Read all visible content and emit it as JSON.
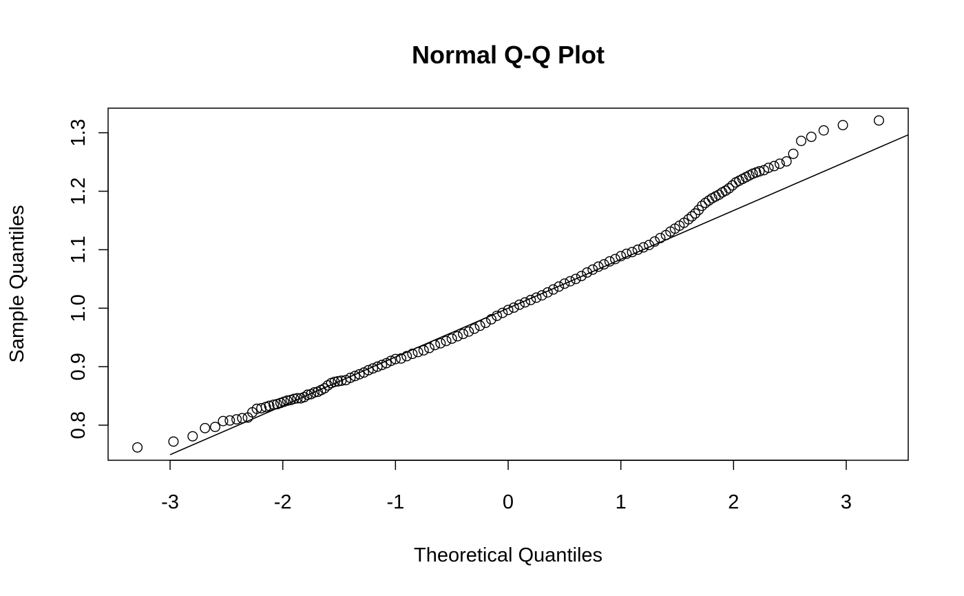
{
  "chart_data": {
    "type": "scatter",
    "title": "Normal Q-Q Plot",
    "xlabel": "Theoretical Quantiles",
    "ylabel": "Sample Quantiles",
    "xlim": [
      -3.55,
      3.55
    ],
    "ylim": [
      0.74,
      1.342
    ],
    "x_ticks": [
      "-3",
      "-2",
      "-1",
      "0",
      "1",
      "2",
      "3"
    ],
    "y_ticks": [
      "0.8",
      "0.9",
      "1.0",
      "1.1",
      "1.2",
      "1.3"
    ],
    "grid": false,
    "reference_line": {
      "label": "qqline",
      "intercept": 1.0,
      "slope": 0.0835,
      "x_start": -3.0
    },
    "series": [
      {
        "marker": "open-circle",
        "points": [
          [
            -3.29,
            0.762
          ],
          [
            -2.97,
            0.772
          ],
          [
            -2.8,
            0.781
          ],
          [
            -2.69,
            0.795
          ],
          [
            -2.6,
            0.797
          ],
          [
            -2.53,
            0.807
          ],
          [
            -2.47,
            0.808
          ],
          [
            -2.41,
            0.81
          ],
          [
            -2.36,
            0.812
          ],
          [
            -2.31,
            0.813
          ],
          [
            -2.27,
            0.822
          ],
          [
            -2.23,
            0.828
          ],
          [
            -2.19,
            0.829
          ],
          [
            -2.15,
            0.831
          ],
          [
            -2.12,
            0.833
          ],
          [
            -2.08,
            0.835
          ],
          [
            -2.05,
            0.836
          ],
          [
            -2.02,
            0.838
          ],
          [
            -1.99,
            0.84
          ],
          [
            -1.96,
            0.842
          ],
          [
            -1.93,
            0.843
          ],
          [
            -1.9,
            0.845
          ],
          [
            -1.87,
            0.846
          ],
          [
            -1.84,
            0.846
          ],
          [
            -1.81,
            0.848
          ],
          [
            -1.78,
            0.852
          ],
          [
            -1.75,
            0.853
          ],
          [
            -1.72,
            0.856
          ],
          [
            -1.69,
            0.857
          ],
          [
            -1.66,
            0.86
          ],
          [
            -1.63,
            0.863
          ],
          [
            -1.6,
            0.868
          ],
          [
            -1.57,
            0.872
          ],
          [
            -1.54,
            0.874
          ],
          [
            -1.51,
            0.875
          ],
          [
            -1.48,
            0.876
          ],
          [
            -1.44,
            0.877
          ],
          [
            -1.4,
            0.881
          ],
          [
            -1.36,
            0.884
          ],
          [
            -1.32,
            0.887
          ],
          [
            -1.28,
            0.89
          ],
          [
            -1.24,
            0.894
          ],
          [
            -1.2,
            0.897
          ],
          [
            -1.16,
            0.9
          ],
          [
            -1.12,
            0.903
          ],
          [
            -1.08,
            0.906
          ],
          [
            -1.04,
            0.91
          ],
          [
            -1.0,
            0.913
          ],
          [
            -0.95,
            0.914
          ],
          [
            -0.9,
            0.918
          ],
          [
            -0.85,
            0.922
          ],
          [
            -0.8,
            0.925
          ],
          [
            -0.75,
            0.928
          ],
          [
            -0.7,
            0.932
          ],
          [
            -0.65,
            0.937
          ],
          [
            -0.6,
            0.94
          ],
          [
            -0.55,
            0.944
          ],
          [
            -0.5,
            0.948
          ],
          [
            -0.45,
            0.952
          ],
          [
            -0.4,
            0.956
          ],
          [
            -0.35,
            0.96
          ],
          [
            -0.3,
            0.965
          ],
          [
            -0.25,
            0.97
          ],
          [
            -0.2,
            0.975
          ],
          [
            -0.15,
            0.981
          ],
          [
            -0.1,
            0.987
          ],
          [
            -0.05,
            0.992
          ],
          [
            0.0,
            0.997
          ],
          [
            0.05,
            1.001
          ],
          [
            0.1,
            1.006
          ],
          [
            0.15,
            1.01
          ],
          [
            0.2,
            1.014
          ],
          [
            0.25,
            1.018
          ],
          [
            0.3,
            1.022
          ],
          [
            0.35,
            1.027
          ],
          [
            0.4,
            1.032
          ],
          [
            0.45,
            1.037
          ],
          [
            0.5,
            1.042
          ],
          [
            0.55,
            1.046
          ],
          [
            0.6,
            1.05
          ],
          [
            0.65,
            1.055
          ],
          [
            0.7,
            1.061
          ],
          [
            0.75,
            1.066
          ],
          [
            0.8,
            1.071
          ],
          [
            0.85,
            1.075
          ],
          [
            0.9,
            1.08
          ],
          [
            0.95,
            1.084
          ],
          [
            1.0,
            1.089
          ],
          [
            1.05,
            1.093
          ],
          [
            1.1,
            1.096
          ],
          [
            1.15,
            1.1
          ],
          [
            1.2,
            1.104
          ],
          [
            1.25,
            1.108
          ],
          [
            1.3,
            1.114
          ],
          [
            1.35,
            1.12
          ],
          [
            1.4,
            1.125
          ],
          [
            1.44,
            1.131
          ],
          [
            1.48,
            1.136
          ],
          [
            1.52,
            1.141
          ],
          [
            1.56,
            1.146
          ],
          [
            1.6,
            1.152
          ],
          [
            1.63,
            1.157
          ],
          [
            1.66,
            1.162
          ],
          [
            1.69,
            1.168
          ],
          [
            1.72,
            1.175
          ],
          [
            1.75,
            1.18
          ],
          [
            1.78,
            1.184
          ],
          [
            1.81,
            1.188
          ],
          [
            1.84,
            1.191
          ],
          [
            1.87,
            1.194
          ],
          [
            1.9,
            1.198
          ],
          [
            1.93,
            1.201
          ],
          [
            1.96,
            1.205
          ],
          [
            1.99,
            1.21
          ],
          [
            2.02,
            1.215
          ],
          [
            2.05,
            1.218
          ],
          [
            2.08,
            1.221
          ],
          [
            2.11,
            1.224
          ],
          [
            2.14,
            1.227
          ],
          [
            2.17,
            1.23
          ],
          [
            2.2,
            1.232
          ],
          [
            2.23,
            1.234
          ],
          [
            2.27,
            1.236
          ],
          [
            2.31,
            1.24
          ],
          [
            2.36,
            1.243
          ],
          [
            2.41,
            1.247
          ],
          [
            2.47,
            1.251
          ],
          [
            2.53,
            1.264
          ],
          [
            2.6,
            1.286
          ],
          [
            2.69,
            1.293
          ],
          [
            2.8,
            1.304
          ],
          [
            2.97,
            1.313
          ],
          [
            3.29,
            1.321
          ]
        ]
      }
    ]
  }
}
